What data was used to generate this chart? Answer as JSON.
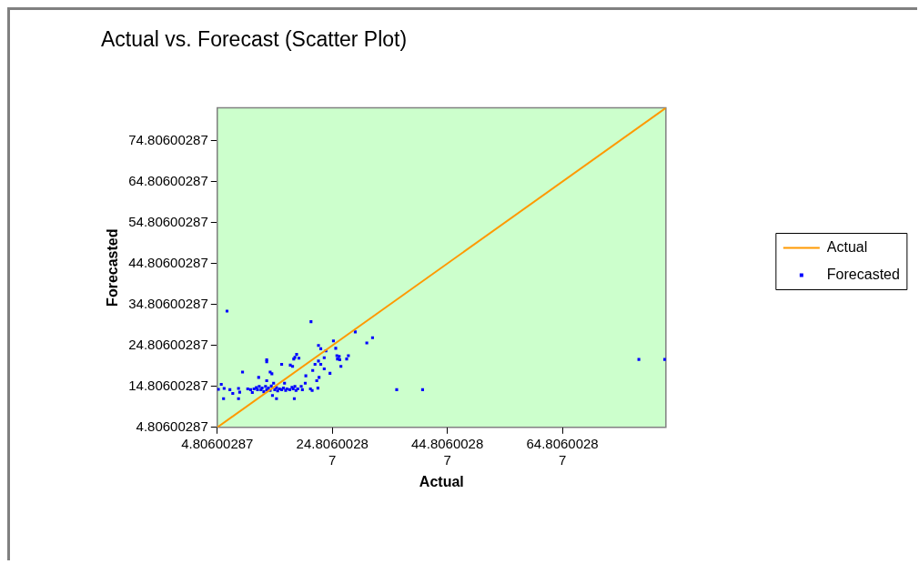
{
  "chart_data": {
    "type": "scatter",
    "title": "Actual vs. Forecast (Scatter Plot)",
    "xlabel": "Actual",
    "ylabel": "Forecasted",
    "xlim": [
      4.80600287,
      82.8
    ],
    "ylim": [
      4.80600287,
      82.8
    ],
    "xticks": [
      4.80600287,
      24.80600287,
      44.80600287,
      64.80600287
    ],
    "yticks": [
      4.80600287,
      14.80600287,
      24.80600287,
      34.80600287,
      44.80600287,
      54.80600287,
      64.80600287,
      74.80600287
    ],
    "legend": "right",
    "grid": false,
    "series": [
      {
        "name": "Actual",
        "type": "line",
        "color": "#ff9900",
        "marker": "none",
        "x": [
          4.81,
          82.8
        ],
        "values": [
          4.81,
          82.8
        ]
      },
      {
        "name": "Forecasted",
        "type": "scatter",
        "color": "#0000ff",
        "marker": "square",
        "x": [
          6.5,
          21.1,
          28.8,
          31.8,
          30.8,
          25.0,
          22.4,
          22.8,
          25.4,
          23.7,
          18.6,
          18.3,
          19.0,
          18.1,
          25.6,
          26.0,
          25.7,
          26.1,
          27.6,
          27.3,
          23.4,
          13.4,
          13.4,
          22.4,
          22.8,
          16.0,
          17.5,
          17.9,
          21.8,
          26.3,
          23.4,
          21.4,
          24.4,
          9.2,
          14.0,
          14.3,
          20.2,
          22.5,
          22.1,
          12.0,
          20.1,
          16.5,
          5.5,
          6.0,
          5.0,
          7.0,
          7.5,
          5.9,
          8.5,
          8.7,
          8.5,
          10.1,
          10.6,
          10.9,
          11.2,
          11.6,
          11.8,
          12.1,
          12.4,
          12.6,
          12.9,
          13.2,
          13.4,
          13.7,
          14.0,
          14.2,
          14.6,
          14.8,
          15.1,
          15.3,
          15.6,
          16.0,
          16.3,
          16.7,
          16.9,
          17.4,
          17.8,
          18.0,
          18.3,
          18.5,
          18.8,
          19.4,
          19.6,
          14.4,
          15.1,
          18.2,
          21.0,
          21.3,
          22.3,
          13.4,
          36.0,
          40.5,
          78.1,
          82.6
        ],
        "values": [
          33.2,
          30.6,
          28.1,
          26.7,
          25.4,
          25.9,
          24.8,
          24.0,
          24.1,
          23.5,
          22.6,
          21.9,
          21.7,
          21.5,
          22.3,
          22.1,
          21.5,
          21.3,
          22.3,
          21.5,
          21.8,
          21.3,
          20.8,
          21.0,
          20.2,
          20.2,
          20.0,
          19.7,
          20.2,
          19.7,
          19.1,
          18.7,
          18.0,
          18.3,
          18.3,
          17.9,
          17.4,
          17.0,
          16.2,
          17.0,
          15.6,
          15.6,
          15.3,
          14.3,
          14.1,
          14.0,
          13.1,
          11.8,
          14.3,
          13.4,
          11.8,
          14.2,
          14.0,
          13.3,
          14.2,
          14.5,
          14.0,
          14.8,
          14.0,
          14.4,
          13.5,
          14.8,
          14.0,
          14.4,
          13.8,
          14.9,
          15.6,
          14.0,
          14.5,
          13.7,
          14.2,
          14.0,
          14.4,
          13.8,
          14.2,
          14.0,
          14.6,
          14.2,
          14.8,
          13.8,
          14.2,
          14.8,
          14.0,
          12.6,
          11.8,
          11.8,
          14.2,
          13.8,
          14.4,
          16.2,
          14.0,
          14.0,
          21.4,
          21.4
        ]
      }
    ]
  }
}
